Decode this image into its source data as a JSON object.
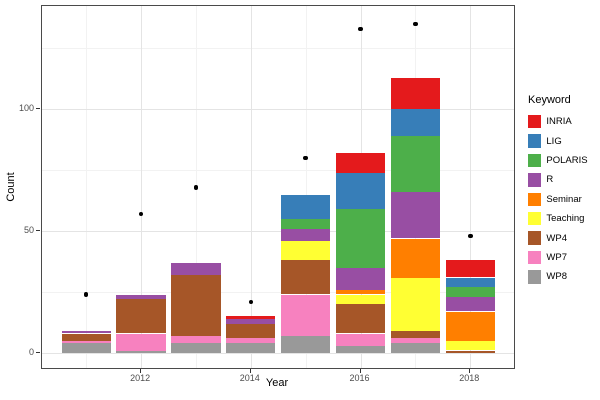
{
  "chart_data": {
    "type": "bar",
    "stacked": true,
    "overlay_points": true,
    "xlabel": "Year",
    "ylabel": "Count",
    "categories": [
      2011,
      2012,
      2013,
      2014,
      2015,
      2016,
      2017,
      2018
    ],
    "series": [
      {
        "name": "WP8",
        "color": "#999999",
        "values": [
          4,
          1,
          4,
          4,
          7,
          3,
          4,
          0
        ]
      },
      {
        "name": "WP7",
        "color": "#F781BF",
        "values": [
          1,
          7,
          3,
          2,
          17,
          5,
          2,
          0
        ]
      },
      {
        "name": "WP4",
        "color": "#A65628",
        "values": [
          3,
          14,
          25,
          6,
          14,
          12,
          3,
          1
        ]
      },
      {
        "name": "Teaching",
        "color": "#FFFF33",
        "values": [
          0,
          0,
          0,
          0,
          8,
          4,
          22,
          4
        ]
      },
      {
        "name": "Seminar",
        "color": "#FF7F00",
        "values": [
          0,
          0,
          0,
          0,
          0,
          2,
          16,
          12
        ]
      },
      {
        "name": "R",
        "color": "#984EA3",
        "values": [
          1,
          2,
          5,
          2,
          5,
          9,
          19,
          6
        ]
      },
      {
        "name": "POLARIS",
        "color": "#4DAF4A",
        "values": [
          0,
          0,
          0,
          0,
          4,
          24,
          23,
          4
        ]
      },
      {
        "name": "LIG",
        "color": "#377EB8",
        "values": [
          0,
          0,
          0,
          0,
          10,
          15,
          11,
          4
        ]
      },
      {
        "name": "INRIA",
        "color": "#E41A1C",
        "values": [
          0,
          0,
          0,
          1,
          0,
          8,
          13,
          7
        ]
      }
    ],
    "bar_totals": [
      9,
      24,
      37,
      15,
      65,
      82,
      113,
      38
    ],
    "points": {
      "color": "#000000",
      "values": [
        24,
        57,
        68,
        21,
        80,
        133,
        135,
        48
      ]
    },
    "yticks": [
      0,
      50,
      100
    ],
    "yticks_minor": [
      25,
      75,
      125
    ],
    "xticks": [
      2012,
      2014,
      2016,
      2018
    ],
    "xticks_minor": [
      2011,
      2013,
      2015,
      2017
    ],
    "ylim": [
      -7,
      142
    ],
    "grid": true,
    "legend": {
      "title": "Keyword",
      "position": "right",
      "entries": [
        "INRIA",
        "LIG",
        "POLARIS",
        "R",
        "Seminar",
        "Teaching",
        "WP4",
        "WP7",
        "WP8"
      ]
    },
    "colors": {
      "panel_border": "#4a4a4a",
      "grid_major": "#e4e4e4",
      "grid_minor": "#f2f2f2",
      "tick_text": "#4d4d4d",
      "point": "#000000"
    }
  }
}
